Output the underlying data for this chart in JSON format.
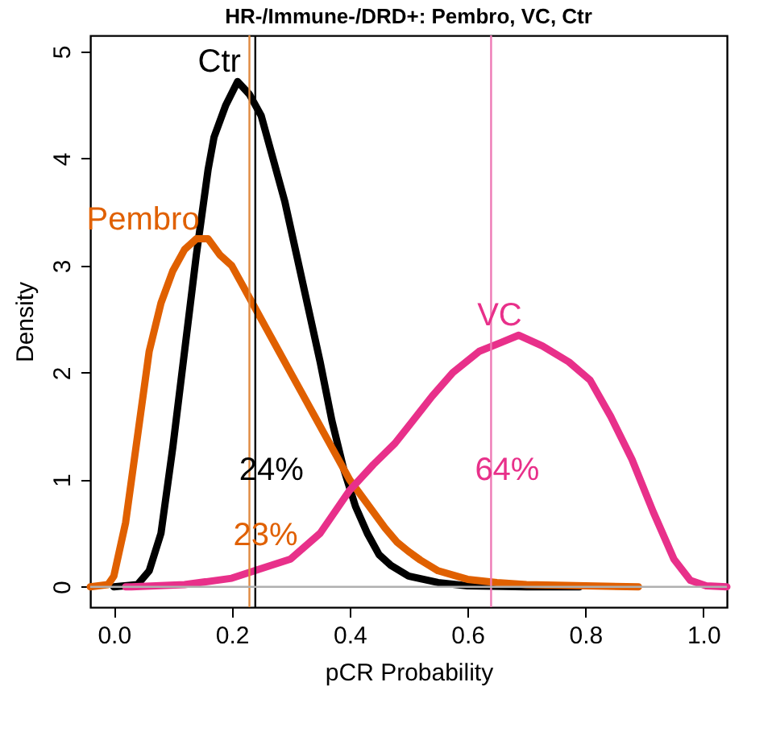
{
  "chart_data": {
    "type": "line",
    "title": "HR-/Immune-/DRD+: Pembro, VC, Ctr",
    "xlabel": "pCR Probability",
    "ylabel": "Density",
    "xlim": [
      -0.04,
      1.04
    ],
    "ylim": [
      -0.19,
      5.15
    ],
    "xticks": [
      {
        "value": 0,
        "label": "0.0"
      },
      {
        "value": 0.2,
        "label": "0.2"
      },
      {
        "value": 0.4,
        "label": "0.4"
      },
      {
        "value": 0.6,
        "label": "0.6"
      },
      {
        "value": 0.8,
        "label": "0.8"
      },
      {
        "value": 1,
        "label": "1.0"
      }
    ],
    "yticks": [
      {
        "value": 0,
        "label": "0"
      },
      {
        "value": 1,
        "label": "1"
      },
      {
        "value": 2,
        "label": "2"
      },
      {
        "value": 3,
        "label": "3"
      },
      {
        "value": 4,
        "label": "4"
      },
      {
        "value": 5,
        "label": "5"
      }
    ],
    "grid": false,
    "line_style": "solid",
    "marker": "none",
    "series": [
      {
        "name": "Ctr",
        "color": "#000000",
        "x": [
          0,
          0.04,
          0.06,
          0.08,
          0.1,
          0.12,
          0.14,
          0.16,
          0.17,
          0.19,
          0.21,
          0.23,
          0.25,
          0.27,
          0.29,
          0.31,
          0.33,
          0.35,
          0.37,
          0.39,
          0.41,
          0.43,
          0.45,
          0.47,
          0.5,
          0.55,
          0.6,
          0.7,
          0.79
        ],
        "values": [
          0,
          0.02,
          0.15,
          0.5,
          1.3,
          2.2,
          3.1,
          3.9,
          4.2,
          4.5,
          4.72,
          4.6,
          4.4,
          4.0,
          3.6,
          3.1,
          2.6,
          2.1,
          1.55,
          1.1,
          0.75,
          0.5,
          0.3,
          0.2,
          0.1,
          0.04,
          0.01,
          0,
          0
        ]
      },
      {
        "name": "Pembro",
        "color": "#e06000",
        "x": [
          -0.04,
          -0.01,
          0,
          0.02,
          0.04,
          0.06,
          0.08,
          0.1,
          0.12,
          0.14,
          0.16,
          0.18,
          0.2,
          0.22,
          0.24,
          0.26,
          0.28,
          0.3,
          0.32,
          0.34,
          0.36,
          0.38,
          0.4,
          0.42,
          0.44,
          0.46,
          0.48,
          0.5,
          0.52,
          0.55,
          0.6,
          0.65,
          0.7,
          0.8,
          0.89
        ],
        "values": [
          0,
          0.02,
          0.1,
          0.6,
          1.4,
          2.2,
          2.65,
          2.95,
          3.15,
          3.25,
          3.25,
          3.1,
          3.0,
          2.8,
          2.6,
          2.4,
          2.2,
          2.0,
          1.8,
          1.6,
          1.4,
          1.2,
          1.0,
          0.85,
          0.7,
          0.55,
          0.42,
          0.33,
          0.25,
          0.15,
          0.07,
          0.04,
          0.02,
          0.01,
          0
        ]
      },
      {
        "name": "VC",
        "color": "#e8308a",
        "x": [
          0.02,
          0.03,
          0.12,
          0.2,
          0.244,
          0.3,
          0.35,
          0.4,
          0.44,
          0.477,
          0.54,
          0.575,
          0.62,
          0.656,
          0.687,
          0.727,
          0.772,
          0.808,
          0.843,
          0.879,
          0.915,
          0.95,
          0.978,
          1.005,
          1.04
        ],
        "values": [
          0,
          0,
          0.02,
          0.08,
          0.16,
          0.26,
          0.5,
          0.9,
          1.14,
          1.34,
          1.78,
          2.0,
          2.2,
          2.28,
          2.35,
          2.25,
          2.1,
          1.93,
          1.59,
          1.19,
          0.7,
          0.26,
          0.06,
          0.01,
          0
        ]
      }
    ],
    "ref_lines": [
      {
        "axis": "x",
        "value": 0.24,
        "color": "#000000"
      },
      {
        "axis": "x",
        "value": 0.23,
        "color": "#e08a40"
      },
      {
        "axis": "x",
        "value": 0.64,
        "color": "#ee7ab5"
      },
      {
        "axis": "y",
        "value": 0,
        "color": "#b0b0b0"
      }
    ],
    "annotations": [
      "24%",
      "23%",
      "64%"
    ]
  }
}
